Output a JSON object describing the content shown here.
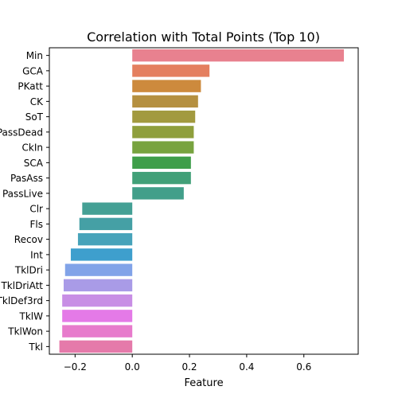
{
  "chart_data": {
    "type": "bar",
    "orientation": "horizontal",
    "title": "Correlation with Total Points (Top 10)",
    "xlabel": "Feature",
    "ylabel": "",
    "xlim": [
      -0.29,
      0.79
    ],
    "xticks": [
      -0.2,
      0.0,
      0.2,
      0.4,
      0.6
    ],
    "xtick_labels": [
      "−0.2",
      "0.0",
      "0.2",
      "0.4",
      "0.6"
    ],
    "grid": false,
    "categories": [
      "Min",
      "GCA",
      "PKatt",
      "CK",
      "SoT",
      "PassDead",
      "CkIn",
      "SCA",
      "PasAss",
      "PassLive",
      "Clr",
      "Fls",
      "Recov",
      "Int",
      "TklDri",
      "TklDriAtt",
      "TklDef3rd",
      "TklW",
      "TklWon",
      "Tkl"
    ],
    "values": [
      0.74,
      0.27,
      0.24,
      0.23,
      0.22,
      0.215,
      0.215,
      0.205,
      0.205,
      0.18,
      -0.175,
      -0.185,
      -0.19,
      -0.215,
      -0.235,
      -0.24,
      -0.245,
      -0.245,
      -0.245,
      -0.255
    ],
    "colors": [
      "#e8818f",
      "#e47f5f",
      "#cd8a3d",
      "#b59040",
      "#a29a3f",
      "#8f9f3c",
      "#78a33f",
      "#3f9e4a",
      "#41a078",
      "#429f8a",
      "#44a095",
      "#45a0a5",
      "#47a3ba",
      "#3e9fcd",
      "#81a3e8",
      "#a99be7",
      "#c88ee5",
      "#e47ae7",
      "#e77bcc",
      "#e57aaa"
    ]
  }
}
